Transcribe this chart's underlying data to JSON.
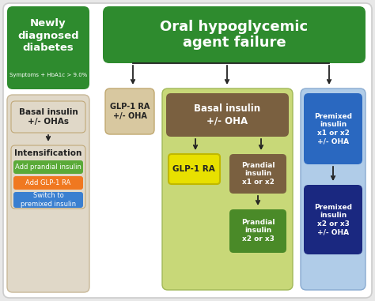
{
  "fig_bg": "#e8e8e8",
  "outer_bg": "#ffffff",
  "outer_border": "#cccccc",
  "newly_diag_bg": "#2e8b2e",
  "newly_diag_title": "Newly\ndiagnosed\ndiabetes",
  "newly_diag_sub": "Symptoms + HbA1c > 9.0%",
  "left_panel_bg": "#e0d8c8",
  "left_panel_border": "#c8b898",
  "basal_left_text": "Basal insulin\n+/- OHAs",
  "intens_text": "Intensification",
  "add_prandial_text": "Add prandial insulin",
  "add_prandial_bg": "#5aaa38",
  "add_glp_text": "Add GLP-1 RA",
  "add_glp_bg": "#f07820",
  "switch_text": "Switch to\npremixed insulin",
  "switch_bg": "#3a7fd0",
  "oha_header_bg": "#2e8b2e",
  "oha_header_text": "Oral hypoglycemic\nagent failure",
  "glp1_tan_bg": "#d8c8a0",
  "glp1_tan_border": "#c0a870",
  "glp1_tan_text": "GLP-1 RA\n+/- OHA",
  "center_panel_bg": "#c8d878",
  "center_panel_border": "#a0b858",
  "basal_center_bg": "#7a6040",
  "basal_center_text": "Basal insulin\n+/- OHA",
  "glp1_yellow_bg": "#e8e000",
  "glp1_yellow_border": "#c0b800",
  "glp1_yellow_text": "GLP-1 RA",
  "prandial_x12_bg": "#7a6040",
  "prandial_x12_text": "Prandial\ninsulin\nx1 or x2",
  "prandial_x23_bg": "#4a8a28",
  "prandial_x23_text": "Prandial\ninsulin\nx2 or x3",
  "right_panel_bg": "#b0cce8",
  "right_panel_border": "#88aad0",
  "premixed_top_bg": "#2a68c0",
  "premixed_top_text": "Premixed\ninsulin\nx1 or x2\n+/- OHA",
  "premixed_bot_bg": "#1a2880",
  "premixed_bot_text": "Premixed\ninsulin\nx2 or x3\n+/- OHA",
  "arrow_color": "#222222",
  "text_white": "#ffffff",
  "text_dark": "#222222"
}
